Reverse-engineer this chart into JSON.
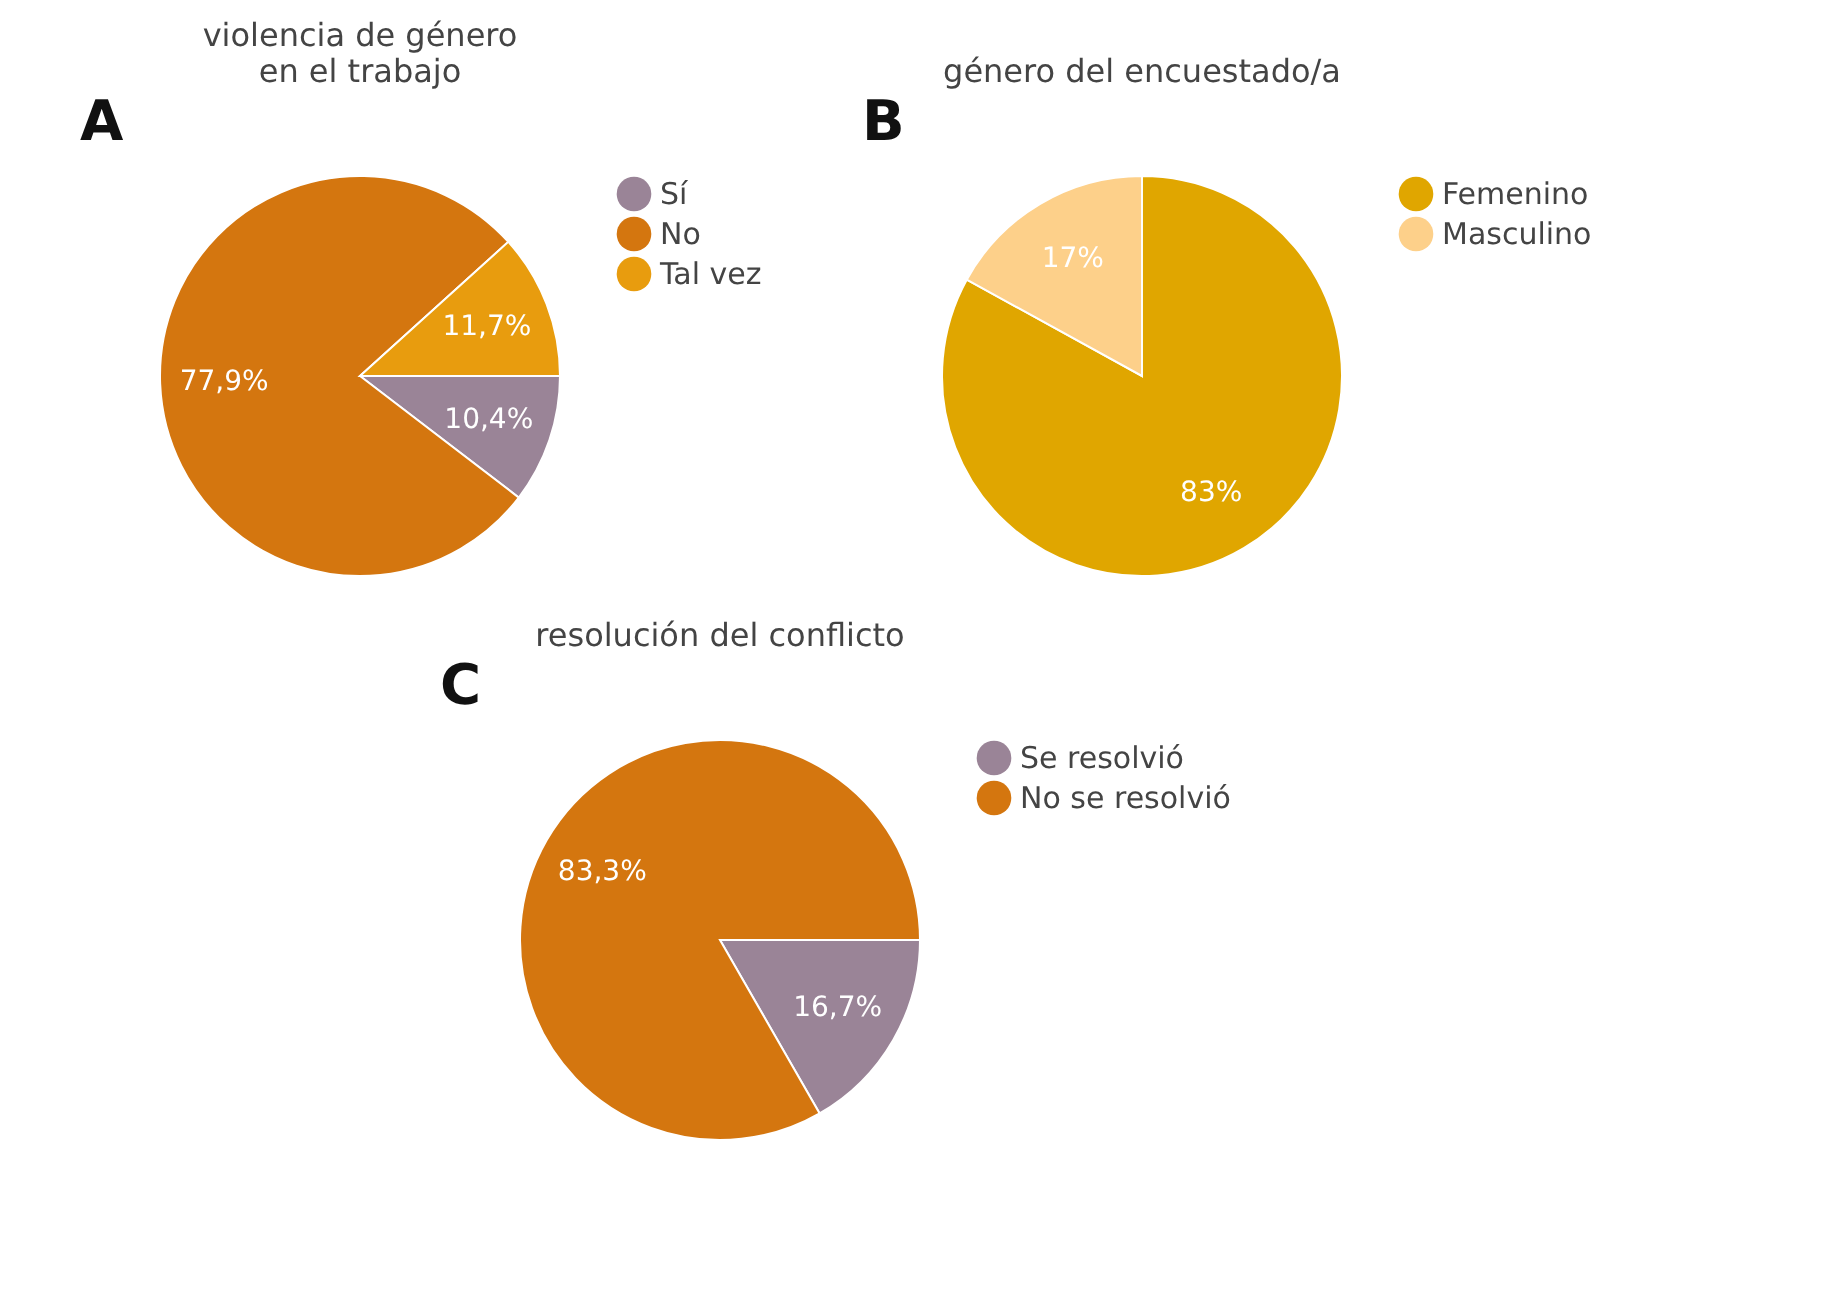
{
  "chart_data": [
    {
      "type": "pie",
      "title": "violencia de género\nen el trabajo",
      "annotations": [
        "A"
      ],
      "categories": [
        "Sí",
        "No",
        "Tal vez"
      ],
      "values": [
        10.4,
        77.9,
        11.7
      ],
      "colors": [
        "#9a8497",
        "#d4760f",
        "#e89c0e"
      ],
      "value_labels": [
        "10,4%",
        "77,9%",
        "11,7%"
      ],
      "legend": "right"
    },
    {
      "type": "pie",
      "title": "género del encuestado/a",
      "annotations": [
        "B"
      ],
      "categories": [
        "Femenino",
        "Masculino"
      ],
      "values": [
        83,
        17
      ],
      "colors": [
        "#e0a600",
        "#fdd08a"
      ],
      "value_labels": [
        "83%",
        "17%"
      ],
      "legend": "right"
    },
    {
      "type": "pie",
      "title": "resolución  del conflicto",
      "annotations": [
        "C"
      ],
      "categories": [
        "Se resolvió",
        "No se resolvió"
      ],
      "values": [
        16.7,
        83.3
      ],
      "colors": [
        "#9a8497",
        "#d4760f"
      ],
      "value_labels": [
        "16,7%",
        "83,3%"
      ],
      "legend": "right"
    }
  ]
}
